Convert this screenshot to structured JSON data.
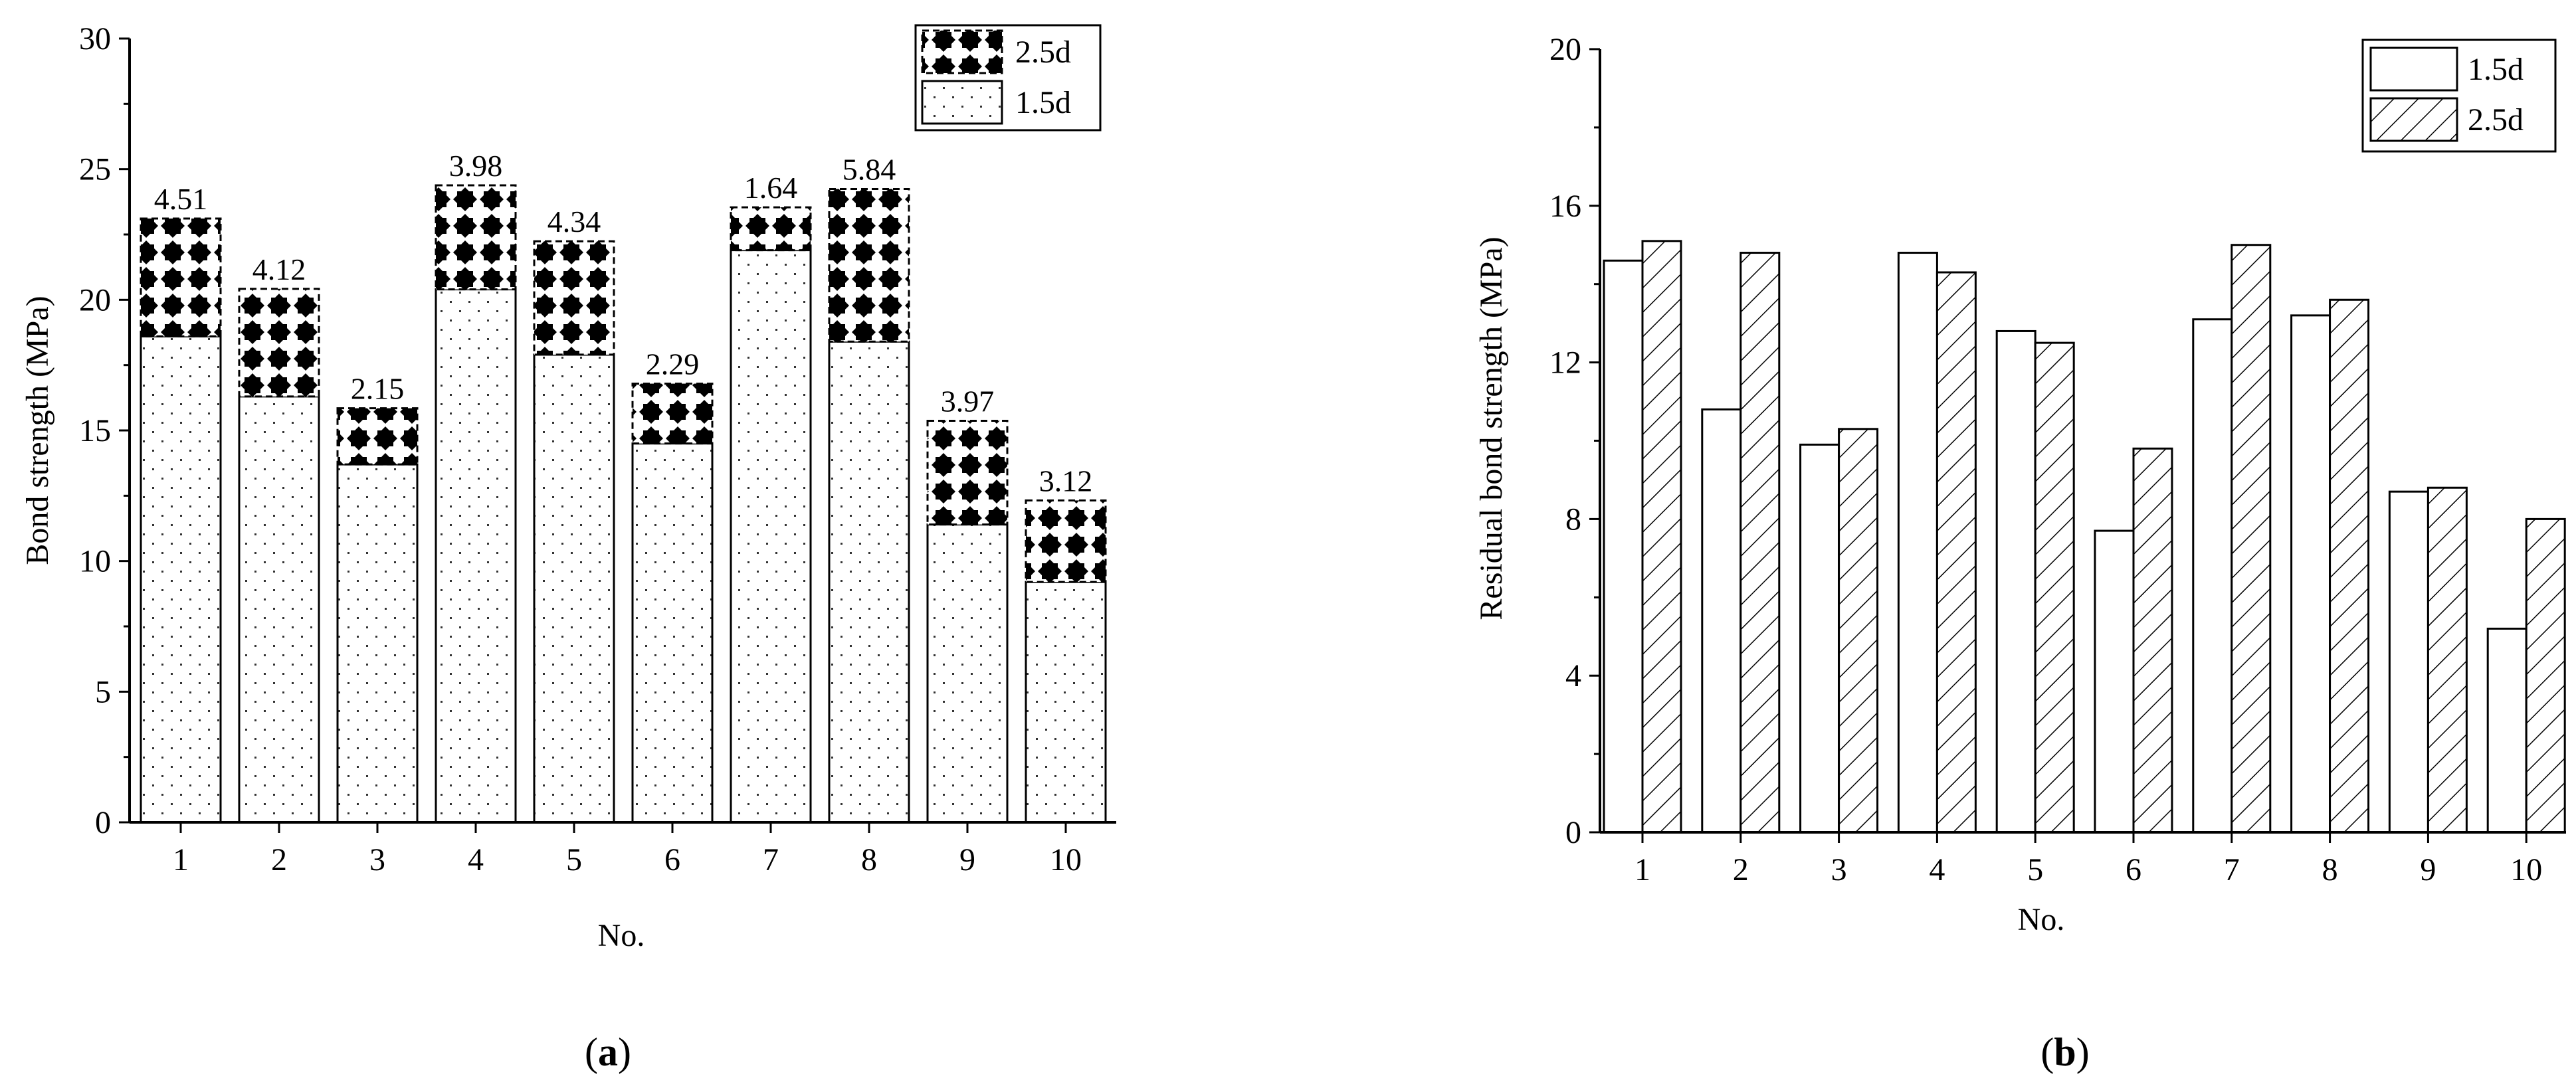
{
  "chart_data": [
    {
      "type": "bar",
      "stacked": true,
      "categories": [
        "1",
        "2",
        "3",
        "4",
        "5",
        "6",
        "7",
        "8",
        "9",
        "10"
      ],
      "series": [
        {
          "name": "1.5d",
          "values": [
            18.6,
            16.3,
            13.7,
            20.4,
            17.9,
            14.5,
            21.9,
            18.4,
            11.4,
            9.2
          ],
          "pattern": "dots"
        },
        {
          "name": "2.5d",
          "values": [
            4.51,
            4.12,
            2.15,
            3.98,
            4.34,
            2.29,
            1.64,
            5.84,
            3.97,
            3.12
          ],
          "pattern": "diamond-checker"
        }
      ],
      "data_labels": [
        "4.51",
        "4.12",
        "2.15",
        "3.98",
        "4.34",
        "2.29",
        "1.64",
        "5.84",
        "3.97",
        "3.12"
      ],
      "xlabel": "No.",
      "ylabel": "Bond strength (MPa)",
      "ylim": [
        0,
        30
      ],
      "yticks": [
        "0",
        "5",
        "10",
        "15",
        "20",
        "25",
        "30"
      ],
      "legend_order": [
        "2.5d",
        "1.5d"
      ],
      "legend_position": "top-right",
      "grid": false,
      "panel_label": "a"
    },
    {
      "type": "bar",
      "stacked": false,
      "categories": [
        "1",
        "2",
        "3",
        "4",
        "5",
        "6",
        "7",
        "8",
        "9",
        "10"
      ],
      "series": [
        {
          "name": "1.5d",
          "values": [
            14.6,
            10.8,
            9.9,
            14.8,
            12.8,
            7.7,
            13.1,
            13.2,
            8.7,
            5.2
          ],
          "pattern": "plain"
        },
        {
          "name": "2.5d",
          "values": [
            15.1,
            14.8,
            10.3,
            14.3,
            12.5,
            9.8,
            15.0,
            13.6,
            8.8,
            8.0
          ],
          "pattern": "hatch"
        }
      ],
      "xlabel": "No.",
      "ylabel": "Residual bond strength (MPa)",
      "ylim": [
        0,
        20
      ],
      "yticks": [
        "0",
        "4",
        "8",
        "12",
        "16",
        "20"
      ],
      "legend_order": [
        "1.5d",
        "2.5d"
      ],
      "legend_position": "top-right",
      "grid": false,
      "panel_label": "b"
    }
  ],
  "panel_labels": {
    "a": "a",
    "b": "b"
  }
}
